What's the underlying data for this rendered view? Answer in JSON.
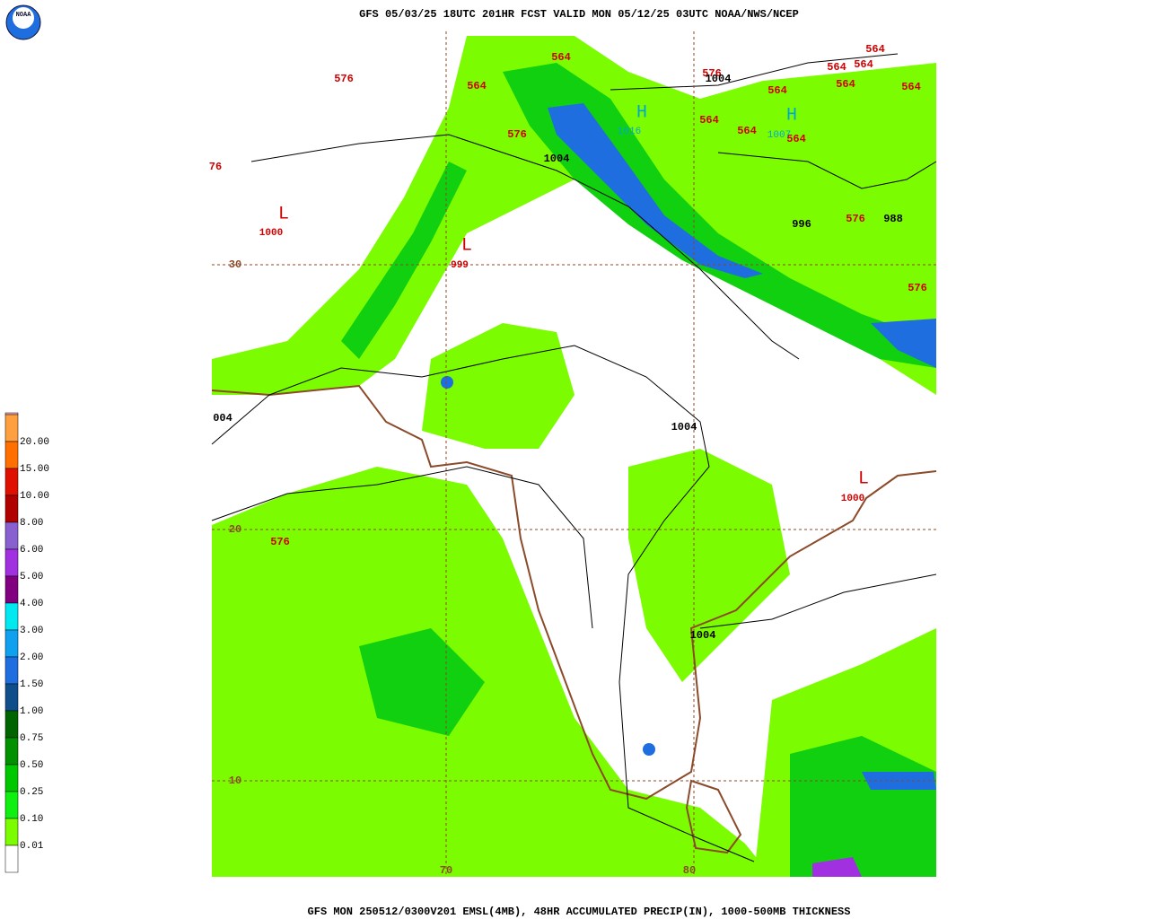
{
  "header": "GFS 05/03/25 18UTC 201HR FCST VALID MON 05/12/25 03UTC NOAA/NWS/NCEP",
  "footer": "GFS MON 250512/0300V201 EMSL(4MB), 48HR ACCUMULATED PRECIP(IN), 1000-500MB THICKNESS",
  "logo": "NOAA",
  "legend": {
    "labels": [
      "20.00",
      "15.00",
      "10.00",
      "8.00",
      "6.00",
      "5.00",
      "4.00",
      "3.00",
      "2.00",
      "1.50",
      "1.00",
      "0.75",
      "0.50",
      "0.25",
      "0.10",
      "0.01"
    ],
    "colors": [
      "#ffb0c0",
      "#ffa040",
      "#ff7000",
      "#e01000",
      "#b00000",
      "#8860d0",
      "#a030e0",
      "#800080",
      "#00e8f0",
      "#10a0f0",
      "#1e6ee0",
      "#104e8b",
      "#006400",
      "#009000",
      "#00c800",
      "#10f010",
      "#7cfc00",
      "#ffffff"
    ]
  },
  "grid_labels": [
    "30",
    "20",
    "10",
    "70",
    "80"
  ],
  "thickness_labels": [
    "576",
    "564",
    "564",
    "576",
    "576",
    "564",
    "564",
    "564",
    "564",
    "564",
    "564",
    "564",
    "564",
    "564",
    "576",
    "576",
    "576",
    "76"
  ],
  "pressure_labels": [
    "1004",
    "1004",
    "996",
    "988",
    "1004",
    "1004",
    "004",
    "1000",
    "999",
    "1000"
  ],
  "high_labels": [
    "1016",
    "1007"
  ],
  "center_symbols": [
    "H",
    "H",
    "L",
    "L",
    "L"
  ]
}
